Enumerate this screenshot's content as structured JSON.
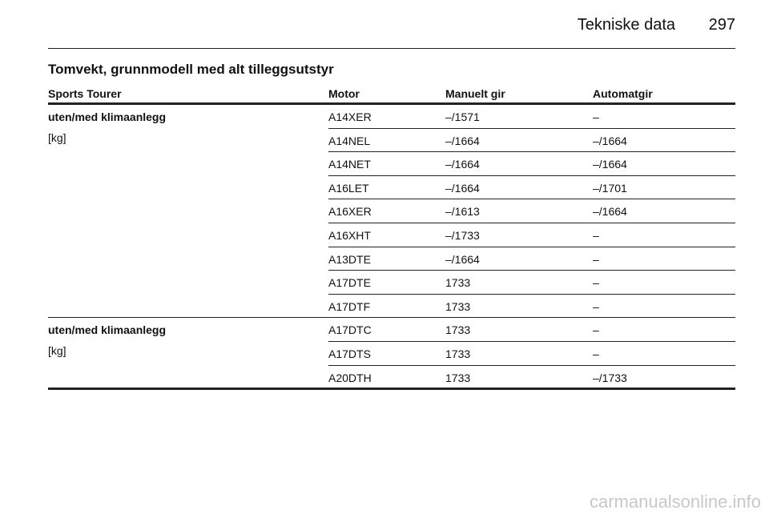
{
  "header": {
    "title": "Tekniske data",
    "page": "297"
  },
  "section_title": "Tomvekt, grunnmodell med alt tilleggsutstyr",
  "table": {
    "columns": [
      "Sports Tourer",
      "Motor",
      "Manuelt gir",
      "Automatgir"
    ],
    "groups": [
      {
        "label": "uten/med klimaanlegg",
        "unit": "[kg]",
        "rows": [
          [
            "A14XER",
            "–/1571",
            "–"
          ],
          [
            "A14NEL",
            "–/1664",
            "–/1664"
          ],
          [
            "A14NET",
            "–/1664",
            "–/1664"
          ],
          [
            "A16LET",
            "–/1664",
            "–/1701"
          ],
          [
            "A16XER",
            "–/1613",
            "–/1664"
          ],
          [
            "A16XHT",
            "–/1733",
            "–"
          ],
          [
            "A13DTE",
            "–/1664",
            "–"
          ],
          [
            "A17DTE",
            "1733",
            "–"
          ],
          [
            "A17DTF",
            "1733",
            "–"
          ]
        ]
      },
      {
        "label": "uten/med klimaanlegg",
        "unit": "[kg]",
        "rows": [
          [
            "A17DTC",
            "1733",
            "–"
          ],
          [
            "A17DTS",
            "1733",
            "–"
          ],
          [
            "A20DTH",
            "1733",
            "–/1733"
          ]
        ]
      }
    ]
  },
  "watermark": "carmanualsonline.info"
}
